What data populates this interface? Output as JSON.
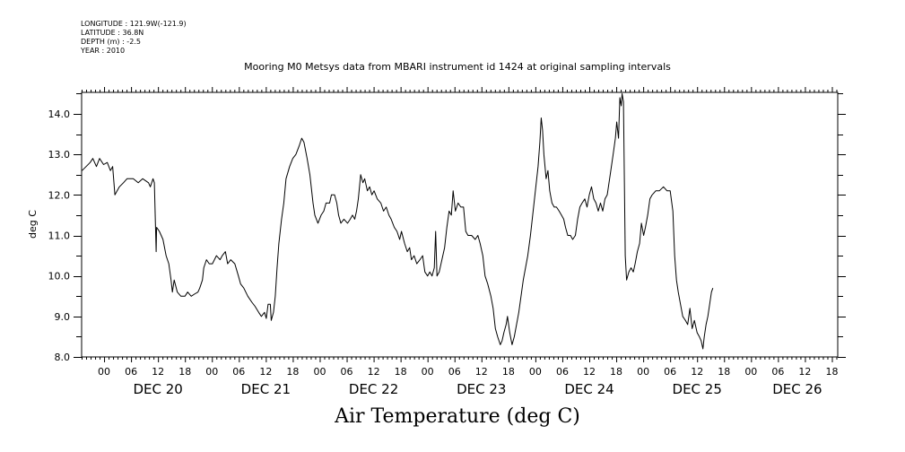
{
  "header": {
    "longitude": "LONGITUDE : 121.9W(-121.9)",
    "latitude": "LATITUDE : 36.8N",
    "depth": "DEPTH (m) : -2.5",
    "year": "YEAR : 2010"
  },
  "chart_data": {
    "type": "line",
    "title": "Mooring M0 Metsys data from MBARI instrument id 1424 at original sampling intervals",
    "bottom_title": "Air Temperature (deg C)",
    "ylabel": "deg C",
    "ylim": [
      8.0,
      14.5
    ],
    "yticks": [
      "8.0",
      "9.0",
      "10.0",
      "11.0",
      "12.0",
      "13.0",
      "14.0"
    ],
    "x_unit": "hours since 2010-12-19 00:00",
    "xlim": [
      19.0,
      187.3
    ],
    "hour_tick_labels": [
      {
        "hour": 24,
        "label": "00"
      },
      {
        "hour": 30,
        "label": "06"
      },
      {
        "hour": 36,
        "label": "12"
      },
      {
        "hour": 42,
        "label": "18"
      },
      {
        "hour": 48,
        "label": "00"
      },
      {
        "hour": 54,
        "label": "06"
      },
      {
        "hour": 60,
        "label": "12"
      },
      {
        "hour": 66,
        "label": "18"
      },
      {
        "hour": 72,
        "label": "00"
      },
      {
        "hour": 78,
        "label": "06"
      },
      {
        "hour": 84,
        "label": "12"
      },
      {
        "hour": 90,
        "label": "18"
      },
      {
        "hour": 96,
        "label": "00"
      },
      {
        "hour": 102,
        "label": "06"
      },
      {
        "hour": 108,
        "label": "12"
      },
      {
        "hour": 114,
        "label": "18"
      },
      {
        "hour": 120,
        "label": "00"
      },
      {
        "hour": 126,
        "label": "06"
      },
      {
        "hour": 132,
        "label": "12"
      },
      {
        "hour": 138,
        "label": "18"
      },
      {
        "hour": 144,
        "label": "00"
      },
      {
        "hour": 150,
        "label": "06"
      },
      {
        "hour": 156,
        "label": "12"
      },
      {
        "hour": 162,
        "label": "18"
      },
      {
        "hour": 168,
        "label": "00"
      },
      {
        "hour": 174,
        "label": "06"
      },
      {
        "hour": 180,
        "label": "12"
      },
      {
        "hour": 186,
        "label": "18"
      }
    ],
    "day_labels": [
      {
        "hour": 36,
        "label": "DEC 20"
      },
      {
        "hour": 60,
        "label": "DEC 21"
      },
      {
        "hour": 84,
        "label": "DEC 22"
      },
      {
        "hour": 108,
        "label": "DEC 23"
      },
      {
        "hour": 132,
        "label": "DEC 24"
      },
      {
        "hour": 156,
        "label": "DEC 25"
      },
      {
        "hour": 178.3,
        "label": "DEC 26"
      }
    ],
    "series": [
      {
        "points": [
          [
            19.1,
            12.6
          ],
          [
            20.0,
            12.7
          ],
          [
            20.9,
            12.8
          ],
          [
            21.5,
            12.9
          ],
          [
            22.3,
            12.7
          ],
          [
            23.0,
            12.9
          ],
          [
            23.9,
            12.75
          ],
          [
            24.7,
            12.8
          ],
          [
            25.4,
            12.6
          ],
          [
            25.9,
            12.7
          ],
          [
            26.4,
            12.0
          ],
          [
            27.4,
            12.2
          ],
          [
            28.3,
            12.3
          ],
          [
            29.1,
            12.4
          ],
          [
            30.5,
            12.4
          ],
          [
            31.6,
            12.3
          ],
          [
            32.6,
            12.4
          ],
          [
            33.9,
            12.3
          ],
          [
            34.3,
            12.2
          ],
          [
            34.9,
            12.4
          ],
          [
            35.2,
            12.3
          ],
          [
            35.6,
            10.6
          ],
          [
            35.7,
            11.2
          ],
          [
            36.3,
            11.1
          ],
          [
            37.1,
            10.9
          ],
          [
            37.8,
            10.5
          ],
          [
            38.4,
            10.3
          ],
          [
            38.9,
            9.9
          ],
          [
            39.2,
            9.6
          ],
          [
            39.6,
            9.9
          ],
          [
            40.3,
            9.6
          ],
          [
            41.1,
            9.5
          ],
          [
            42.0,
            9.5
          ],
          [
            42.6,
            9.6
          ],
          [
            43.4,
            9.5
          ],
          [
            44.1,
            9.55
          ],
          [
            44.9,
            9.6
          ],
          [
            45.3,
            9.7
          ],
          [
            45.9,
            9.9
          ],
          [
            46.2,
            10.2
          ],
          [
            46.8,
            10.4
          ],
          [
            47.4,
            10.3
          ],
          [
            48.1,
            10.3
          ],
          [
            49.0,
            10.5
          ],
          [
            49.8,
            10.4
          ],
          [
            50.3,
            10.5
          ],
          [
            51.0,
            10.6
          ],
          [
            51.5,
            10.3
          ],
          [
            52.2,
            10.4
          ],
          [
            53.1,
            10.3
          ],
          [
            53.9,
            10.0
          ],
          [
            54.4,
            9.8
          ],
          [
            55.1,
            9.7
          ],
          [
            56.0,
            9.5
          ],
          [
            56.9,
            9.35
          ],
          [
            57.6,
            9.25
          ],
          [
            58.4,
            9.1
          ],
          [
            59.0,
            9.0
          ],
          [
            59.7,
            9.1
          ],
          [
            60.1,
            8.95
          ],
          [
            60.5,
            9.3
          ],
          [
            61.0,
            9.3
          ],
          [
            61.2,
            8.9
          ],
          [
            61.7,
            9.1
          ],
          [
            62.1,
            9.5
          ],
          [
            62.5,
            10.2
          ],
          [
            62.9,
            10.8
          ],
          [
            63.5,
            11.4
          ],
          [
            64.0,
            11.8
          ],
          [
            64.5,
            12.4
          ],
          [
            65.3,
            12.7
          ],
          [
            66.0,
            12.9
          ],
          [
            66.7,
            13.0
          ],
          [
            67.4,
            13.2
          ],
          [
            68.0,
            13.4
          ],
          [
            68.5,
            13.3
          ],
          [
            69.2,
            12.9
          ],
          [
            69.8,
            12.5
          ],
          [
            70.5,
            11.8
          ],
          [
            70.9,
            11.5
          ],
          [
            71.6,
            11.3
          ],
          [
            72.3,
            11.5
          ],
          [
            72.9,
            11.6
          ],
          [
            73.4,
            11.8
          ],
          [
            74.2,
            11.8
          ],
          [
            74.6,
            12.0
          ],
          [
            75.3,
            12.0
          ],
          [
            75.8,
            11.8
          ],
          [
            76.2,
            11.5
          ],
          [
            76.7,
            11.3
          ],
          [
            77.4,
            11.4
          ],
          [
            78.2,
            11.3
          ],
          [
            78.8,
            11.4
          ],
          [
            79.3,
            11.5
          ],
          [
            79.8,
            11.4
          ],
          [
            80.2,
            11.6
          ],
          [
            80.6,
            11.9
          ],
          [
            81.1,
            12.5
          ],
          [
            81.6,
            12.3
          ],
          [
            82.0,
            12.4
          ],
          [
            82.6,
            12.1
          ],
          [
            83.1,
            12.2
          ],
          [
            83.6,
            12.0
          ],
          [
            84.1,
            12.1
          ],
          [
            84.8,
            11.9
          ],
          [
            85.6,
            11.8
          ],
          [
            86.2,
            11.6
          ],
          [
            86.8,
            11.7
          ],
          [
            87.4,
            11.5
          ],
          [
            87.9,
            11.4
          ],
          [
            88.6,
            11.2
          ],
          [
            89.2,
            11.1
          ],
          [
            89.8,
            10.9
          ],
          [
            90.2,
            11.1
          ],
          [
            90.9,
            10.8
          ],
          [
            91.5,
            10.6
          ],
          [
            92.0,
            10.7
          ],
          [
            92.4,
            10.4
          ],
          [
            93.0,
            10.5
          ],
          [
            93.6,
            10.3
          ],
          [
            94.3,
            10.4
          ],
          [
            94.9,
            10.5
          ],
          [
            95.4,
            10.1
          ],
          [
            96.0,
            10.0
          ],
          [
            96.5,
            10.1
          ],
          [
            97.0,
            10.0
          ],
          [
            97.5,
            10.2
          ],
          [
            97.8,
            11.1
          ],
          [
            98.1,
            10.0
          ],
          [
            98.6,
            10.1
          ],
          [
            99.2,
            10.4
          ],
          [
            99.8,
            10.7
          ],
          [
            100.3,
            11.2
          ],
          [
            100.8,
            11.6
          ],
          [
            101.3,
            11.5
          ],
          [
            101.7,
            12.1
          ],
          [
            102.2,
            11.6
          ],
          [
            102.8,
            11.8
          ],
          [
            103.4,
            11.7
          ],
          [
            104.0,
            11.7
          ],
          [
            104.5,
            11.1
          ],
          [
            105.0,
            11.0
          ],
          [
            105.8,
            11.0
          ],
          [
            106.6,
            10.9
          ],
          [
            107.2,
            11.0
          ],
          [
            107.7,
            10.8
          ],
          [
            108.3,
            10.5
          ],
          [
            108.8,
            10.0
          ],
          [
            109.4,
            9.8
          ],
          [
            110.1,
            9.5
          ],
          [
            110.6,
            9.2
          ],
          [
            111.1,
            8.7
          ],
          [
            111.6,
            8.5
          ],
          [
            112.2,
            8.3
          ],
          [
            112.6,
            8.4
          ],
          [
            113.0,
            8.6
          ],
          [
            113.5,
            8.8
          ],
          [
            113.8,
            9.0
          ],
          [
            114.3,
            8.6
          ],
          [
            114.8,
            8.3
          ],
          [
            115.3,
            8.5
          ],
          [
            115.8,
            8.8
          ],
          [
            116.3,
            9.1
          ],
          [
            116.8,
            9.5
          ],
          [
            117.3,
            9.9
          ],
          [
            117.8,
            10.2
          ],
          [
            118.3,
            10.5
          ],
          [
            118.9,
            11.0
          ],
          [
            119.5,
            11.6
          ],
          [
            120.1,
            12.2
          ],
          [
            120.6,
            12.7
          ],
          [
            121.0,
            13.3
          ],
          [
            121.3,
            13.9
          ],
          [
            121.6,
            13.6
          ],
          [
            121.9,
            13.0
          ],
          [
            122.4,
            12.4
          ],
          [
            122.8,
            12.6
          ],
          [
            123.2,
            12.1
          ],
          [
            123.7,
            11.8
          ],
          [
            124.2,
            11.7
          ],
          [
            124.7,
            11.7
          ],
          [
            125.3,
            11.6
          ],
          [
            125.8,
            11.5
          ],
          [
            126.3,
            11.4
          ],
          [
            126.7,
            11.2
          ],
          [
            127.2,
            11.0
          ],
          [
            127.8,
            11.0
          ],
          [
            128.3,
            10.9
          ],
          [
            128.9,
            11.0
          ],
          [
            129.4,
            11.4
          ],
          [
            129.9,
            11.7
          ],
          [
            130.4,
            11.8
          ],
          [
            131.0,
            11.9
          ],
          [
            131.5,
            11.7
          ],
          [
            132.0,
            12.0
          ],
          [
            132.5,
            12.2
          ],
          [
            133.0,
            11.9
          ],
          [
            133.5,
            11.8
          ],
          [
            134.0,
            11.6
          ],
          [
            134.5,
            11.8
          ],
          [
            135.0,
            11.6
          ],
          [
            135.5,
            11.9
          ],
          [
            136.0,
            12.0
          ],
          [
            136.4,
            12.3
          ],
          [
            136.8,
            12.6
          ],
          [
            137.3,
            13.0
          ],
          [
            137.8,
            13.4
          ],
          [
            138.1,
            13.8
          ],
          [
            138.5,
            13.4
          ],
          [
            138.8,
            14.4
          ],
          [
            139.1,
            14.2
          ],
          [
            139.3,
            14.5
          ],
          [
            139.6,
            14.3
          ],
          [
            140.0,
            10.5
          ],
          [
            140.3,
            9.9
          ],
          [
            140.8,
            10.1
          ],
          [
            141.3,
            10.2
          ],
          [
            141.8,
            10.1
          ],
          [
            142.2,
            10.3
          ],
          [
            142.7,
            10.6
          ],
          [
            143.2,
            10.8
          ],
          [
            143.6,
            11.3
          ],
          [
            144.1,
            11.0
          ],
          [
            144.5,
            11.2
          ],
          [
            145.0,
            11.5
          ],
          [
            145.5,
            11.9
          ],
          [
            146.0,
            12.0
          ],
          [
            146.8,
            12.1
          ],
          [
            147.6,
            12.1
          ],
          [
            148.5,
            12.2
          ],
          [
            149.3,
            12.1
          ],
          [
            150.0,
            12.1
          ],
          [
            150.6,
            11.6
          ],
          [
            151.0,
            10.5
          ],
          [
            151.4,
            9.9
          ],
          [
            151.8,
            9.6
          ],
          [
            152.3,
            9.3
          ],
          [
            152.8,
            9.0
          ],
          [
            153.4,
            8.9
          ],
          [
            153.9,
            8.8
          ],
          [
            154.4,
            9.2
          ],
          [
            154.9,
            8.7
          ],
          [
            155.4,
            8.9
          ],
          [
            156.0,
            8.6
          ],
          [
            156.5,
            8.5
          ],
          [
            156.9,
            8.4
          ],
          [
            157.3,
            8.2
          ],
          [
            157.6,
            8.5
          ],
          [
            158.0,
            8.8
          ],
          [
            158.4,
            9.0
          ],
          [
            158.8,
            9.3
          ],
          [
            159.2,
            9.6
          ],
          [
            159.5,
            9.7
          ]
        ]
      }
    ]
  }
}
